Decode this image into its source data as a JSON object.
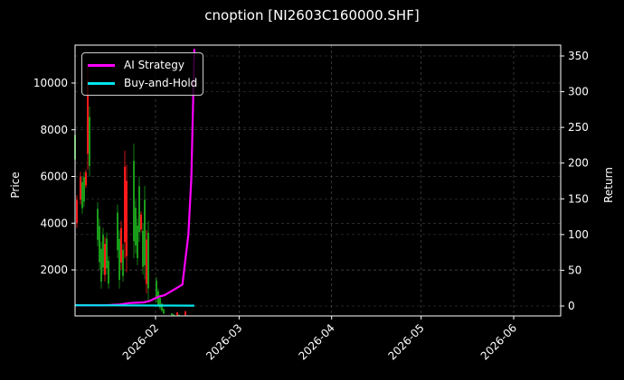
{
  "title": "cnoption [NI2603C160000.SHF]",
  "chart_data": {
    "type": "candlestick+line",
    "title": "cnoption [NI2603C160000.SHF]",
    "xlabel": "",
    "ylabel_left": "Price",
    "ylabel_right": "Return",
    "x_ticks": [
      "2026-02",
      "2026-03",
      "2026-04",
      "2026-05",
      "2026-06"
    ],
    "y_left_ticks": [
      2000,
      4000,
      6000,
      8000,
      10000
    ],
    "y_right_ticks": [
      0,
      50,
      100,
      150,
      200,
      250,
      300,
      350
    ],
    "y_left_range": [
      0,
      11500
    ],
    "y_right_range": [
      -15,
      360
    ],
    "grid": true,
    "legend_position": "upper left",
    "series": [
      {
        "name": "AI Strategy",
        "color": "#ff00ff",
        "type": "line",
        "x": [
          "2026-01-05",
          "2026-01-15",
          "2026-01-20",
          "2026-01-23",
          "2026-01-28",
          "2026-01-30",
          "2026-02-02",
          "2026-02-04",
          "2026-02-10",
          "2026-02-12",
          "2026-02-13",
          "2026-02-14"
        ],
        "values": [
          1,
          1,
          2,
          4,
          5,
          7,
          13,
          15,
          30,
          100,
          180,
          360
        ]
      },
      {
        "name": "Buy-and-Hold",
        "color": "#00e5ee",
        "type": "line",
        "x": [
          "2026-01-05",
          "2026-02-14"
        ],
        "values": [
          1,
          0.5
        ]
      }
    ],
    "candles_summary": "Daily OHLC candles (red=up, green=down) from early Jan to mid Feb 2026; prices range ~10000 down to ~100"
  },
  "legend": {
    "items": [
      {
        "label": "AI Strategy",
        "color": "#ff00ff"
      },
      {
        "label": "Buy-and-Hold",
        "color": "#00e5ee"
      }
    ]
  },
  "axes": {
    "left_label": "Price",
    "right_label": "Return"
  }
}
